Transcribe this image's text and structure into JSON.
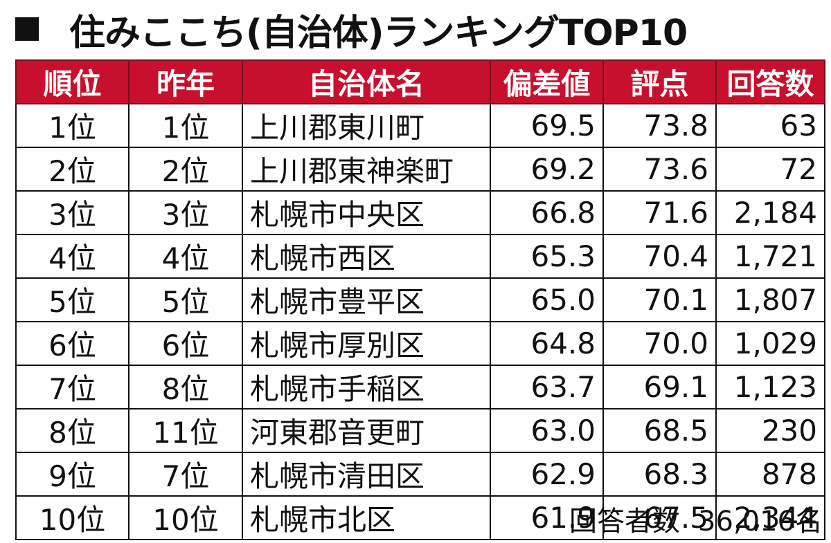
{
  "title": {
    "marker": "■",
    "text": "住みここち(自治体)ランキングTOP10"
  },
  "table": {
    "headers": [
      "順位",
      "昨年",
      "自治体名",
      "偏差値",
      "評点",
      "回答数"
    ],
    "rows": [
      {
        "rank": "1位",
        "prev": "1位",
        "name": "上川郡東川町",
        "dev": "69.5",
        "score": "73.8",
        "count": "63"
      },
      {
        "rank": "2位",
        "prev": "2位",
        "name": "上川郡東神楽町",
        "dev": "69.2",
        "score": "73.6",
        "count": "72"
      },
      {
        "rank": "3位",
        "prev": "3位",
        "name": "札幌市中央区",
        "dev": "66.8",
        "score": "71.6",
        "count": "2,184"
      },
      {
        "rank": "4位",
        "prev": "4位",
        "name": "札幌市西区",
        "dev": "65.3",
        "score": "70.4",
        "count": "1,721"
      },
      {
        "rank": "5位",
        "prev": "5位",
        "name": "札幌市豊平区",
        "dev": "65.0",
        "score": "70.1",
        "count": "1,807"
      },
      {
        "rank": "6位",
        "prev": "6位",
        "name": "札幌市厚別区",
        "dev": "64.8",
        "score": "70.0",
        "count": "1,029"
      },
      {
        "rank": "7位",
        "prev": "8位",
        "name": "札幌市手稲区",
        "dev": "63.7",
        "score": "69.1",
        "count": "1,123"
      },
      {
        "rank": "8位",
        "prev": "11位",
        "name": "河東郡音更町",
        "dev": "63.0",
        "score": "68.5",
        "count": "230"
      },
      {
        "rank": "9位",
        "prev": "7位",
        "name": "札幌市清田区",
        "dev": "62.9",
        "score": "68.3",
        "count": "878"
      },
      {
        "rank": "10位",
        "prev": "10位",
        "name": "札幌市北区",
        "dev": "61.9",
        "score": "67.5",
        "count": "2,344"
      }
    ]
  },
  "footer": {
    "label": "回答者数",
    "value": "36,016名"
  },
  "colors": {
    "header_bg": "#c8102e",
    "header_text": "#ffffff"
  }
}
